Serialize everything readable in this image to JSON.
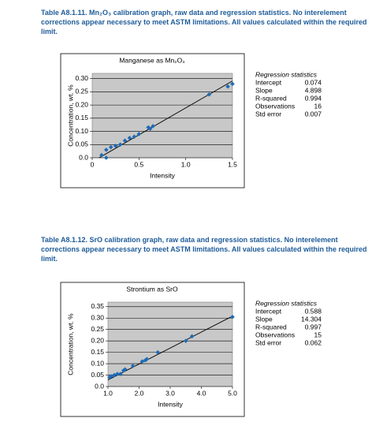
{
  "chart_data": [
    {
      "type": "scatter",
      "label": "Table A8.1.11.",
      "caption": "Mn₂O₃ calibration graph, raw data and regression statistics. No interele­ment corrections appear necessary to meet ASTM limitations. All values calculated within the required limit.",
      "title": "Manganese as Mn₂O₃",
      "x_label": "Intensity",
      "y_label": "Concentration, wt. %",
      "x": [
        0.1,
        0.15,
        0.15,
        0.2,
        0.25,
        0.3,
        0.35,
        0.4,
        0.45,
        0.5,
        0.6,
        0.62,
        0.65,
        1.25,
        1.45,
        1.5
      ],
      "values": [
        0.01,
        0.0,
        0.03,
        0.04,
        0.045,
        0.05,
        0.065,
        0.075,
        0.08,
        0.09,
        0.115,
        0.11,
        0.12,
        0.24,
        0.27,
        0.28
      ],
      "color": "#1f6bb5",
      "xlim": [
        0,
        1.5
      ],
      "ylim": [
        0,
        0.32
      ],
      "xticks": [
        0,
        0.5,
        {
          "value": 1,
          "label": "1.0"
        },
        1.5
      ],
      "yticks": [
        {
          "value": 0,
          "label": "0.0"
        },
        0.05,
        {
          "value": 0.1,
          "label": "0.10"
        },
        0.15,
        {
          "value": 0.2,
          "label": "0.20"
        },
        0.25,
        {
          "value": 0.3,
          "label": "0.30"
        }
      ],
      "grid": true,
      "stats": {
        "title": "Regression statistics",
        "rows": [
          {
            "label": "Intercept",
            "value": 0.074
          },
          {
            "label": "Slope",
            "value": 4.898
          },
          {
            "label": "R-squared",
            "value": 0.994
          },
          {
            "label": "Observations",
            "value": 16
          },
          {
            "label": "Std error",
            "value": 0.007
          }
        ]
      }
    },
    {
      "type": "scatter",
      "label": "Table A8.1.12.",
      "caption": "SrO calibration graph, raw data and regression statistics. No interelement corrections appear necessary to meet ASTM limitations. All values calcu­lated within the required limit.",
      "title": "Strontium as SrO",
      "x_label": "Intensity",
      "y_label": "Concentration, wt. %",
      "x": [
        1.05,
        1.1,
        1.2,
        1.3,
        1.4,
        1.5,
        1.55,
        1.8,
        2.1,
        2.2,
        2.25,
        2.6,
        3.5,
        3.7,
        5.0
      ],
      "values": [
        0.04,
        0.045,
        0.05,
        0.055,
        0.055,
        0.07,
        0.075,
        0.09,
        0.11,
        0.115,
        0.12,
        0.15,
        0.2,
        0.22,
        0.305
      ],
      "color": "#1f6bb5",
      "xlim": [
        1,
        5
      ],
      "ylim": [
        0,
        0.37
      ],
      "xticks": [
        {
          "value": 1,
          "label": "1.0"
        },
        {
          "value": 2,
          "label": "2.0"
        },
        {
          "value": 3,
          "label": "3.0"
        },
        {
          "value": 4,
          "label": "4.0"
        },
        {
          "value": 5,
          "label": "5.0"
        }
      ],
      "yticks": [
        {
          "value": 0,
          "label": "0.0"
        },
        0.05,
        {
          "value": 0.1,
          "label": "0.10"
        },
        0.15,
        {
          "value": 0.2,
          "label": "0.20"
        },
        0.25,
        {
          "value": 0.3,
          "label": "0.30"
        },
        0.35
      ],
      "grid": true,
      "stats": {
        "title": "Regression statistics",
        "rows": [
          {
            "label": "Intercept",
            "value": 0.588
          },
          {
            "label": "Slope",
            "value": 14.304
          },
          {
            "label": "R-squared",
            "value": 0.997
          },
          {
            "label": "Observations",
            "value": 15
          },
          {
            "label": "Std error",
            "value": 0.062
          }
        ]
      }
    }
  ]
}
